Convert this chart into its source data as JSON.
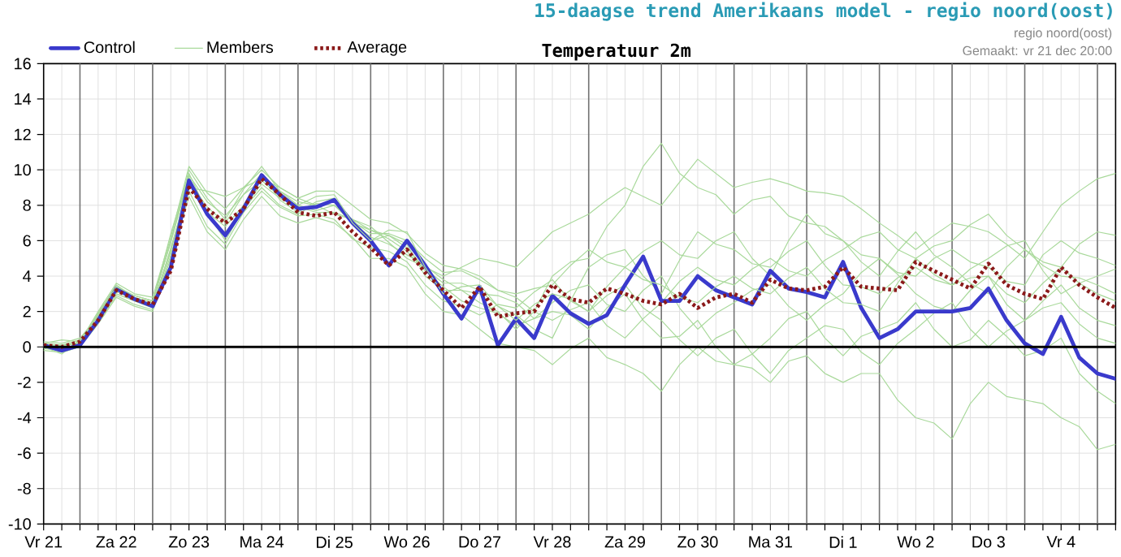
{
  "chart_data": {
    "type": "line",
    "title": "15-daagse trend Amerikaans model - regio noord(oost)",
    "subtitle": "Temperatuur 2m",
    "annotations": [
      "regio noord(oost)",
      "Gemaakt: vr 21 dec 20:00"
    ],
    "categories": [
      "Vr 21",
      null,
      null,
      null,
      "Za 22",
      null,
      null,
      null,
      "Zo 23",
      null,
      null,
      null,
      "Ma 24",
      null,
      null,
      null,
      "Di 25",
      null,
      null,
      null,
      "Wo 26",
      null,
      null,
      null,
      "Do 27",
      null,
      null,
      null,
      "Vr 28",
      null,
      null,
      null,
      "Za 29",
      null,
      null,
      null,
      "Zo 30",
      null,
      null,
      null,
      "Ma 31",
      null,
      null,
      null,
      "Di 1",
      null,
      null,
      null,
      "Wo 2",
      null,
      null,
      null,
      "Do 3",
      null,
      null,
      null,
      "Vr 4",
      null,
      null,
      null
    ],
    "ylim": [
      -10,
      16
    ],
    "yticks": [
      -10,
      -8,
      -6,
      -4,
      -2,
      0,
      2,
      4,
      6,
      8,
      10,
      12,
      14,
      16
    ],
    "grid": true,
    "legend": "top left",
    "ref_lines": [
      {
        "axis": "y",
        "value": 0,
        "color": "#000000"
      }
    ],
    "series": [
      {
        "color": "#a9d99b",
        "line_style": "solid",
        "values": [
          0.0,
          0.1,
          0.2,
          1.6,
          3.0,
          2.6,
          2.2,
          5.6,
          9.0,
          8.8,
          8.5,
          9.0,
          9.5,
          9.0,
          8.4,
          8.0,
          7.5,
          7.2,
          6.8,
          5.9,
          5.0,
          4.5,
          4.0,
          4.5,
          5.0,
          4.8,
          4.5,
          5.5,
          6.5,
          7.0,
          7.5,
          8.3,
          9.0,
          8.5,
          8.0,
          9.3,
          10.6,
          9.8,
          9.0,
          9.3,
          9.5,
          9.2,
          8.8,
          8.7,
          8.5,
          7.8,
          7.0,
          6.3,
          5.5,
          6.3,
          7.0,
          6.8,
          6.5,
          5.8,
          5.0,
          6.5,
          8.0,
          8.8,
          9.5,
          9.8
        ]
      },
      {
        "color": "#a9d99b",
        "line_style": "solid",
        "values": [
          -0.2,
          -0.3,
          0.0,
          1.9,
          3.5,
          2.8,
          2.5,
          6.4,
          9.8,
          7.6,
          6.0,
          7.8,
          9.0,
          8.0,
          7.5,
          8.1,
          8.0,
          7.2,
          6.0,
          6.3,
          5.8,
          4.0,
          3.2,
          3.2,
          2.5,
          2.0,
          1.0,
          2.0,
          4.0,
          4.8,
          5.0,
          6.8,
          8.0,
          10.2,
          11.5,
          9.8,
          9.0,
          8.6,
          7.5,
          8.3,
          8.5,
          7.4,
          7.0,
          6.8,
          6.0,
          5.2,
          5.0,
          4.2,
          4.0,
          5.0,
          5.5,
          4.8,
          4.5,
          3.7,
          3.5,
          5.2,
          6.0,
          5.3,
          5.0,
          4.6
        ]
      },
      {
        "color": "#a9d99b",
        "line_style": "solid",
        "values": [
          0.1,
          -0.3,
          0.0,
          1.3,
          2.8,
          2.3,
          2.0,
          5.0,
          8.5,
          6.5,
          5.5,
          7.2,
          8.5,
          7.4,
          7.0,
          7.3,
          7.0,
          6.2,
          5.0,
          5.0,
          4.5,
          3.0,
          2.0,
          1.8,
          1.0,
          0.2,
          0.0,
          -0.2,
          -1.0,
          -0.1,
          0.5,
          -0.6,
          -1.0,
          -1.5,
          -2.5,
          -1.0,
          0.0,
          -0.8,
          -1.0,
          -1.2,
          -2.0,
          -0.8,
          -0.5,
          -1.5,
          -2.0,
          -1.5,
          -1.5,
          -3.0,
          -4.0,
          -4.3,
          -5.2,
          -3.2,
          -2.0,
          -2.8,
          -3.0,
          -3.2,
          -4.0,
          -4.5,
          -5.8,
          -5.5
        ]
      },
      {
        "color": "#a9d99b",
        "line_style": "solid",
        "values": [
          0.3,
          0.2,
          0.5,
          1.7,
          3.2,
          2.6,
          2.4,
          5.5,
          9.2,
          7.6,
          6.8,
          8.0,
          9.6,
          8.8,
          8.2,
          8.0,
          8.2,
          7.0,
          6.2,
          5.8,
          5.2,
          4.6,
          3.8,
          3.2,
          3.0,
          2.9,
          2.5,
          1.6,
          2.0,
          1.8,
          1.0,
          2.2,
          3.0,
          1.5,
          0.5,
          0.6,
          1.5,
          0.0,
          -1.0,
          -0.4,
          0.5,
          1.6,
          2.0,
          0.5,
          -0.5,
          0.6,
          1.0,
          1.4,
          2.5,
          1.0,
          0.0,
          0.4,
          1.5,
          0.6,
          -0.5,
          -0.2,
          0.5,
          -1.5,
          -2.5,
          -3.2
        ]
      },
      {
        "color": "#a9d99b",
        "line_style": "solid",
        "values": [
          0.0,
          0.1,
          0.2,
          1.8,
          3.3,
          2.7,
          2.3,
          5.4,
          9.4,
          7.9,
          7.0,
          8.6,
          9.8,
          8.3,
          7.6,
          8.2,
          8.4,
          7.1,
          6.4,
          6.4,
          6.0,
          5.0,
          4.2,
          4.3,
          3.8,
          3.2,
          3.0,
          3.3,
          3.5,
          4.6,
          5.5,
          4.8,
          4.5,
          5.4,
          6.0,
          5.2,
          5.0,
          6.0,
          6.5,
          5.0,
          4.0,
          6.0,
          7.5,
          6.4,
          6.0,
          4.8,
          4.0,
          5.4,
          6.5,
          5.2,
          4.5,
          3.6,
          3.0,
          4.5,
          5.5,
          4.8,
          4.5,
          5.8,
          6.5,
          6.3
        ]
      },
      {
        "color": "#a9d99b",
        "line_style": "solid",
        "values": [
          -0.1,
          -0.2,
          0.1,
          1.5,
          3.1,
          2.9,
          2.6,
          5.9,
          9.6,
          7.4,
          6.2,
          7.9,
          9.2,
          8.4,
          7.9,
          7.6,
          7.6,
          7.2,
          6.6,
          6.1,
          5.4,
          4.3,
          3.4,
          2.6,
          2.2,
          1.9,
          1.2,
          1.6,
          2.5,
          3.2,
          3.5,
          2.4,
          2.0,
          3.2,
          4.0,
          2.2,
          1.0,
          1.9,
          2.5,
          3.2,
          3.5,
          2.3,
          1.5,
          2.4,
          3.0,
          4.2,
          5.0,
          4.1,
          3.0,
          2.3,
          2.0,
          3.2,
          4.0,
          2.4,
          1.5,
          2.6,
          3.5,
          2.2,
          1.5,
          1.2
        ]
      },
      {
        "color": "#a9d99b",
        "line_style": "solid",
        "values": [
          0.2,
          0.4,
          0.3,
          2.0,
          3.6,
          3.0,
          2.8,
          6.2,
          10.2,
          8.7,
          7.8,
          9.0,
          10.0,
          9.0,
          8.4,
          8.8,
          8.8,
          8.0,
          7.2,
          7.0,
          6.4,
          5.3,
          4.6,
          4.4,
          4.0,
          3.2,
          2.8,
          2.0,
          1.5,
          2.1,
          2.5,
          1.2,
          0.5,
          1.6,
          2.5,
          3.7,
          4.5,
          3.8,
          3.5,
          4.4,
          5.0,
          4.3,
          4.0,
          4.9,
          5.5,
          6.2,
          6.5,
          5.5,
          5.0,
          5.7,
          6.0,
          6.9,
          7.5,
          6.3,
          5.5,
          4.6,
          4.0,
          3.9,
          3.5,
          3.0
        ]
      },
      {
        "color": "#a9d99b",
        "line_style": "solid",
        "values": [
          0.0,
          -0.4,
          0.4,
          1.4,
          2.9,
          2.4,
          2.1,
          5.2,
          8.8,
          6.8,
          5.8,
          7.6,
          8.8,
          7.9,
          7.4,
          7.5,
          7.2,
          6.1,
          5.6,
          5.4,
          4.8,
          3.5,
          2.6,
          2.3,
          1.8,
          2.4,
          2.2,
          3.1,
          3.8,
          2.6,
          2.0,
          2.9,
          3.5,
          2.2,
          1.5,
          0.4,
          -0.5,
          0.5,
          1.0,
          -0.4,
          -1.5,
          -0.2,
          0.5,
          1.2,
          1.0,
          -0.3,
          -1.0,
          0.2,
          1.0,
          1.9,
          2.5,
          1.0,
          0.0,
          0.9,
          1.5,
          2.2,
          2.5,
          1.3,
          0.5,
          0.2
        ]
      },
      {
        "color": "#a9d99b",
        "line_style": "solid",
        "values": [
          0.1,
          0.0,
          0.3,
          1.9,
          3.4,
          2.8,
          2.5,
          6.0,
          9.7,
          8.2,
          7.4,
          8.6,
          9.4,
          8.5,
          8.0,
          7.7,
          8.0,
          7.0,
          6.6,
          6.3,
          5.6,
          4.4,
          3.6,
          3.6,
          3.2,
          2.3,
          1.8,
          1.0,
          0.5,
          2.6,
          4.5,
          5.2,
          5.5,
          4.0,
          3.0,
          4.9,
          6.5,
          5.8,
          5.5,
          4.7,
          4.5,
          5.4,
          6.0,
          4.6,
          3.5,
          3.4,
          3.0,
          3.9,
          4.5,
          3.8,
          3.5,
          4.4,
          5.0,
          5.7,
          6.0,
          4.3,
          3.0,
          3.6,
          4.0,
          4.4
        ]
      },
      {
        "name": "Control",
        "color": "#3a3acc",
        "line_style": "solid",
        "values": [
          0.1,
          -0.2,
          0.1,
          1.5,
          3.3,
          2.7,
          2.3,
          4.5,
          9.4,
          7.5,
          6.3,
          7.8,
          9.7,
          8.6,
          7.8,
          7.9,
          8.3,
          7.0,
          6.0,
          4.6,
          6.0,
          4.6,
          3.0,
          1.6,
          3.4,
          0.1,
          1.6,
          0.5,
          2.9,
          1.9,
          1.3,
          1.8,
          3.5,
          5.1,
          2.6,
          2.6,
          4.0,
          3.2,
          2.8,
          2.4,
          4.3,
          3.3,
          3.1,
          2.8,
          4.8,
          2.2,
          0.5,
          1.0,
          2.0,
          2.0,
          2.0,
          2.2,
          3.3,
          1.5,
          0.2,
          -0.4,
          1.7,
          -0.6,
          -1.5,
          -1.8
        ]
      },
      {
        "name": "Members",
        "color": "#a9d99b",
        "line_style": "solid",
        "values": [
          0.2,
          0.1,
          0.4,
          1.8,
          3.4,
          2.9,
          2.6,
          6.0,
          10.0,
          8.4,
          7.2,
          8.9,
          10.2,
          8.8,
          8.0,
          8.5,
          8.6,
          7.0,
          6.0,
          6.6,
          6.5,
          4.5,
          3.0,
          3.4,
          3.5,
          2.3,
          1.5,
          2.4,
          3.0,
          2.7,
          2.0,
          3.4,
          4.5,
          3.8,
          3.5,
          2.8,
          2.5,
          3.4,
          4.0,
          3.3,
          3.0,
          3.9,
          4.5,
          3.3,
          2.5,
          2.4,
          2.0,
          3.6,
          5.0,
          4.1,
          3.5,
          3.9,
          4.0,
          3.0,
          2.5,
          3.6,
          4.5,
          3.6,
          3.0,
          2.6
        ]
      },
      {
        "name": "Average",
        "color": "#8b1a1a",
        "line_style": "dotted",
        "values": [
          0.1,
          0.0,
          0.3,
          1.5,
          3.2,
          2.7,
          2.4,
          4.3,
          9.0,
          7.8,
          7.0,
          7.8,
          9.5,
          8.6,
          7.6,
          7.4,
          7.6,
          6.5,
          5.6,
          4.6,
          5.5,
          4.2,
          3.2,
          2.2,
          3.4,
          1.7,
          1.9,
          2.0,
          3.5,
          2.7,
          2.5,
          3.3,
          3.0,
          2.6,
          2.4,
          3.0,
          2.2,
          2.8,
          3.0,
          2.5,
          3.8,
          3.3,
          3.2,
          3.4,
          4.5,
          3.4,
          3.3,
          3.2,
          4.8,
          4.3,
          3.8,
          3.3,
          4.7,
          3.5,
          3.0,
          2.7,
          4.5,
          3.5,
          2.8,
          2.2
        ]
      }
    ]
  }
}
